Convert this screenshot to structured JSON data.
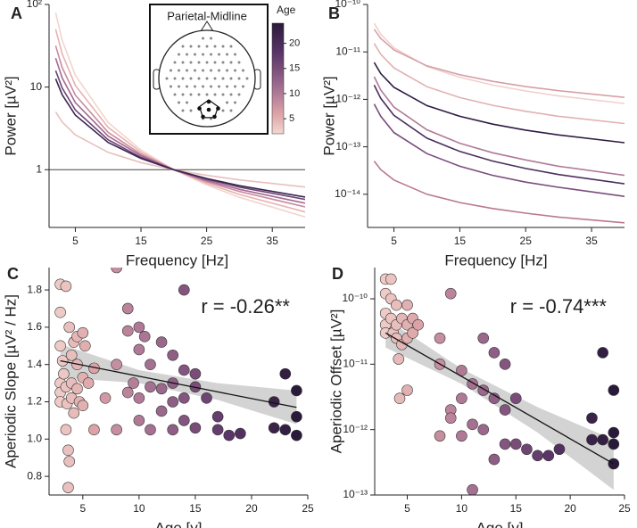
{
  "chart_data": [
    {
      "type": "line",
      "panel": "A",
      "xlabel": "Frequency [Hz]",
      "ylabel": "Power [µV²]",
      "xlim": [
        1,
        40
      ],
      "xticks": [
        5,
        15,
        25,
        35
      ],
      "ylim": [
        0.2,
        100
      ],
      "yticks": [
        1,
        10,
        {
          "value": 100,
          "label": "10²"
        }
      ],
      "log_y": true,
      "hline": 1,
      "x": [
        2,
        3,
        5,
        10,
        15,
        20,
        25,
        30,
        40
      ],
      "series": [
        {
          "color": "#f2d4ce",
          "values": [
            79.4,
            36.8,
            13.9,
            3.73,
            1.73,
            1,
            0.655,
            0.463,
            0.268
          ]
        },
        {
          "color": "#e6b2b1",
          "values": [
            50.1,
            25.2,
            10.5,
            3.25,
            1.63,
            1,
            0.684,
            0.502,
            0.308
          ]
        },
        {
          "color": "#e8c0bd",
          "values": [
            5.0,
            3.78,
            2.64,
            1.62,
            1.22,
            1,
            0.855,
            0.753,
            0.616
          ]
        },
        {
          "color": "#c98a9f",
          "values": [
            31.6,
            17.2,
            8.0,
            2.83,
            1.54,
            1,
            0.715,
            0.545,
            0.354
          ]
        },
        {
          "color": "#a46a8e",
          "values": [
            22.4,
            12.9,
            6.5,
            2.55,
            1.48,
            1,
            0.74,
            0.578,
            0.393
          ]
        },
        {
          "color": "#6e4474",
          "values": [
            15.8,
            9.75,
            5.28,
            2.3,
            1.41,
            1,
            0.765,
            0.615,
            0.436
          ]
        },
        {
          "color": "#3a2450",
          "values": [
            12.6,
            8.06,
            4.59,
            2.14,
            1.37,
            1,
            0.782,
            0.64,
            0.467
          ]
        }
      ],
      "inset": {
        "title": "Parietal-Midline"
      },
      "colorbar": {
        "title": "Age",
        "range": [
          2,
          24
        ],
        "ticks": [
          5,
          10,
          15,
          20
        ],
        "stops": [
          {
            "value": 2,
            "color": "#f4d8d0"
          },
          {
            "value": 6,
            "color": "#dba3a7"
          },
          {
            "value": 10,
            "color": "#b07a97"
          },
          {
            "value": 14,
            "color": "#84557f"
          },
          {
            "value": 18,
            "color": "#5a3568"
          },
          {
            "value": 24,
            "color": "#2a1a3a"
          }
        ]
      }
    },
    {
      "type": "line",
      "panel": "B",
      "xlabel": "Frequency [Hz]",
      "ylabel": "Power [µV²]",
      "xlim": [
        1,
        40
      ],
      "xticks": [
        5,
        15,
        25,
        35
      ],
      "ylim": [
        2e-15,
        1e-10
      ],
      "log_y": true,
      "yticks": [
        {
          "value": 1e-14,
          "label": "10⁻¹⁴"
        },
        {
          "value": 1e-13,
          "label": "10⁻¹³"
        },
        {
          "value": 1e-12,
          "label": "10⁻¹²"
        },
        {
          "value": 1e-11,
          "label": "10⁻¹¹"
        },
        {
          "value": 1e-10,
          "label": "10⁻¹⁰"
        }
      ],
      "x": [
        2,
        3,
        5,
        10,
        15,
        20,
        25,
        30,
        40
      ],
      "series": [
        {
          "color": "#f0d0cc",
          "values": [
            4e-11,
            2.36e-11,
            1.22e-11,
            4.93e-12,
            2.92e-12,
            2e-12,
            1.5e-12,
            1.18e-12,
            8.2e-13
          ]
        },
        {
          "color": "#d6a0a8",
          "values": [
            3e-11,
            1.92e-11,
            1.1e-11,
            5.1e-12,
            3.3e-12,
            2.4e-12,
            1.86e-12,
            1.52e-12,
            1.1e-12
          ]
        },
        {
          "color": "#e2b0b0",
          "values": [
            1.5e-11,
            8.9e-12,
            4.6e-12,
            1.85e-12,
            1.09e-12,
            7.5e-13,
            5.6e-13,
            4.4e-13,
            3.1e-13
          ]
        },
        {
          "color": "#2e1c44",
          "values": [
            6e-12,
            3.5e-12,
            1.8e-12,
            7.4e-13,
            4.4e-13,
            3e-13,
            2.25e-13,
            1.78e-13,
            1.22e-13
          ]
        },
        {
          "color": "#b07a97",
          "values": [
            3e-12,
            1.57e-12,
            6.9e-13,
            2.29e-13,
            1.19e-13,
            7.5e-14,
            5.3e-14,
            3.9e-14,
            2.5e-14
          ]
        },
        {
          "color": "#4a2e60",
          "values": [
            2e-12,
            1.05e-12,
            4.6e-13,
            1.52e-13,
            8e-14,
            5e-14,
            3.5e-14,
            2.6e-14,
            1.66e-14
          ]
        },
        {
          "color": "#7a4c7c",
          "values": [
            8e-13,
            4.4e-13,
            2e-13,
            7.2e-14,
            3.9e-14,
            2.5e-14,
            1.8e-14,
            1.4e-14,
            9e-15
          ]
        },
        {
          "color": "#b9788f",
          "values": [
            5e-14,
            3.3e-14,
            2e-14,
            1e-14,
            6.7e-15,
            5e-15,
            4e-15,
            3.3e-15,
            2.5e-15
          ]
        }
      ]
    },
    {
      "type": "scatter",
      "panel": "C",
      "xlabel": "Age [y]",
      "ylabel": "Aperiodic Slope [µV² / Hz]",
      "annotation": "r = -0.26**",
      "xlim": [
        2,
        25
      ],
      "xticks": [
        5,
        10,
        15,
        20,
        25
      ],
      "ylim": [
        0.7,
        1.92
      ],
      "yticks": [
        0.8,
        {
          "value": 1,
          "label": "1.0"
        },
        1.2,
        1.4,
        1.6,
        1.8
      ],
      "x": [
        3,
        3,
        3,
        3,
        3,
        3,
        3.2,
        3.3,
        3.5,
        3.5,
        3.5,
        3.6,
        3.7,
        3.7,
        3.8,
        3.8,
        4,
        4,
        4,
        4.2,
        4.2,
        4.5,
        4.5,
        4.5,
        4.7,
        5,
        5,
        5,
        5.2,
        5.5,
        6,
        6,
        7,
        8,
        8,
        8,
        9,
        9,
        9,
        9.5,
        10,
        10,
        10,
        10,
        10.5,
        11,
        11,
        11,
        12,
        12,
        12,
        13,
        13,
        13,
        13,
        14,
        14,
        14,
        14,
        15,
        15,
        15,
        16,
        17,
        17,
        18,
        19,
        22,
        22,
        23,
        23,
        24,
        24,
        24
      ],
      "y": [
        1.83,
        1.68,
        1.5,
        1.3,
        1.25,
        1.2,
        1.42,
        1.35,
        1.82,
        1.28,
        1.05,
        1.19,
        0.94,
        0.74,
        0.88,
        1.6,
        1.45,
        1.3,
        1.22,
        1.52,
        1.14,
        1.55,
        1.4,
        1.27,
        1.2,
        1.57,
        1.33,
        1.18,
        1.5,
        1.3,
        1.05,
        1.38,
        1.22,
        1.92,
        1.05,
        1.4,
        1.7,
        1.58,
        1.25,
        1.3,
        1.6,
        1.48,
        1.22,
        1.1,
        1.55,
        1.4,
        1.28,
        1.05,
        1.52,
        1.27,
        1.15,
        1.45,
        1.3,
        1.2,
        1.05,
        1.8,
        1.37,
        1.22,
        1.1,
        1.35,
        1.28,
        1.06,
        1.22,
        1.12,
        1.05,
        1.02,
        1.03,
        1.2,
        1.06,
        1.35,
        1.05,
        1.26,
        1.12,
        1.02
      ],
      "fit": {
        "x": [
          3,
          10,
          17,
          24
        ],
        "y": [
          1.42,
          1.337,
          1.253,
          1.17
        ],
        "lower": [
          1.33,
          1.3,
          1.21,
          1.08
        ],
        "upper": [
          1.51,
          1.37,
          1.3,
          1.26
        ]
      }
    },
    {
      "type": "scatter",
      "panel": "D",
      "xlabel": "Age [y]",
      "ylabel": "Aperiodic Offset [µV²]",
      "annotation": "r = -0.74***",
      "xlim": [
        2,
        25
      ],
      "xticks": [
        5,
        10,
        15,
        20,
        25
      ],
      "ylim": [
        1e-13,
        3e-10
      ],
      "log_y": true,
      "yticks": [
        {
          "value": 1e-13,
          "label": "10⁻¹³"
        },
        {
          "value": 1e-12,
          "label": "10⁻¹²"
        },
        {
          "value": 1e-11,
          "label": "10⁻¹¹"
        },
        {
          "value": 1e-10,
          "label": "10⁻¹⁰"
        }
      ],
      "x": [
        3,
        3,
        3,
        3,
        3,
        3.5,
        3.5,
        3.5,
        3.7,
        4,
        4,
        4,
        4.2,
        4.3,
        4.5,
        4.5,
        5,
        5,
        5,
        5,
        5.5,
        5.5,
        6,
        8,
        8,
        8,
        9,
        9,
        9,
        10,
        10,
        10,
        11,
        11,
        11,
        12,
        12,
        12,
        13,
        13,
        13,
        14,
        14,
        14,
        15,
        15,
        16,
        17,
        18,
        19,
        22,
        22,
        23,
        23,
        24,
        24,
        24,
        24
      ],
      "y": [
        2e-10,
        1.2e-10,
        6e-11,
        4e-11,
        3e-11,
        2e-10,
        1e-10,
        5e-11,
        3e-11,
        8e-11,
        4e-11,
        2.5e-11,
        1.2e-11,
        3e-12,
        5e-11,
        2e-11,
        8e-11,
        4e-11,
        2.5e-11,
        4e-12,
        5e-11,
        3e-11,
        4e-11,
        2.5e-11,
        1e-11,
        8e-13,
        1.2e-10,
        2e-12,
        1.5e-12,
        8e-12,
        3e-12,
        8e-13,
        5e-12,
        1.2e-12,
        1.2e-13,
        2.5e-11,
        4e-12,
        1e-12,
        1.5e-11,
        3e-12,
        3.5e-13,
        1e-11,
        2e-12,
        6e-13,
        3e-12,
        6e-13,
        5e-13,
        4e-13,
        4e-13,
        5e-13,
        1.5e-12,
        7e-13,
        1.5e-11,
        7e-13,
        4e-12,
        9e-13,
        6e-13,
        3e-13
      ],
      "fit": {
        "x": [
          3,
          10,
          17,
          24
        ],
        "y": [
          3e-11,
          6.5e-12,
          1.4e-12,
          3e-13
        ],
        "lower": [
          1.8e-11,
          5e-12,
          9e-13,
          1.2e-13
        ],
        "upper": [
          5e-11,
          8.5e-12,
          2.2e-12,
          7e-13
        ]
      }
    }
  ]
}
